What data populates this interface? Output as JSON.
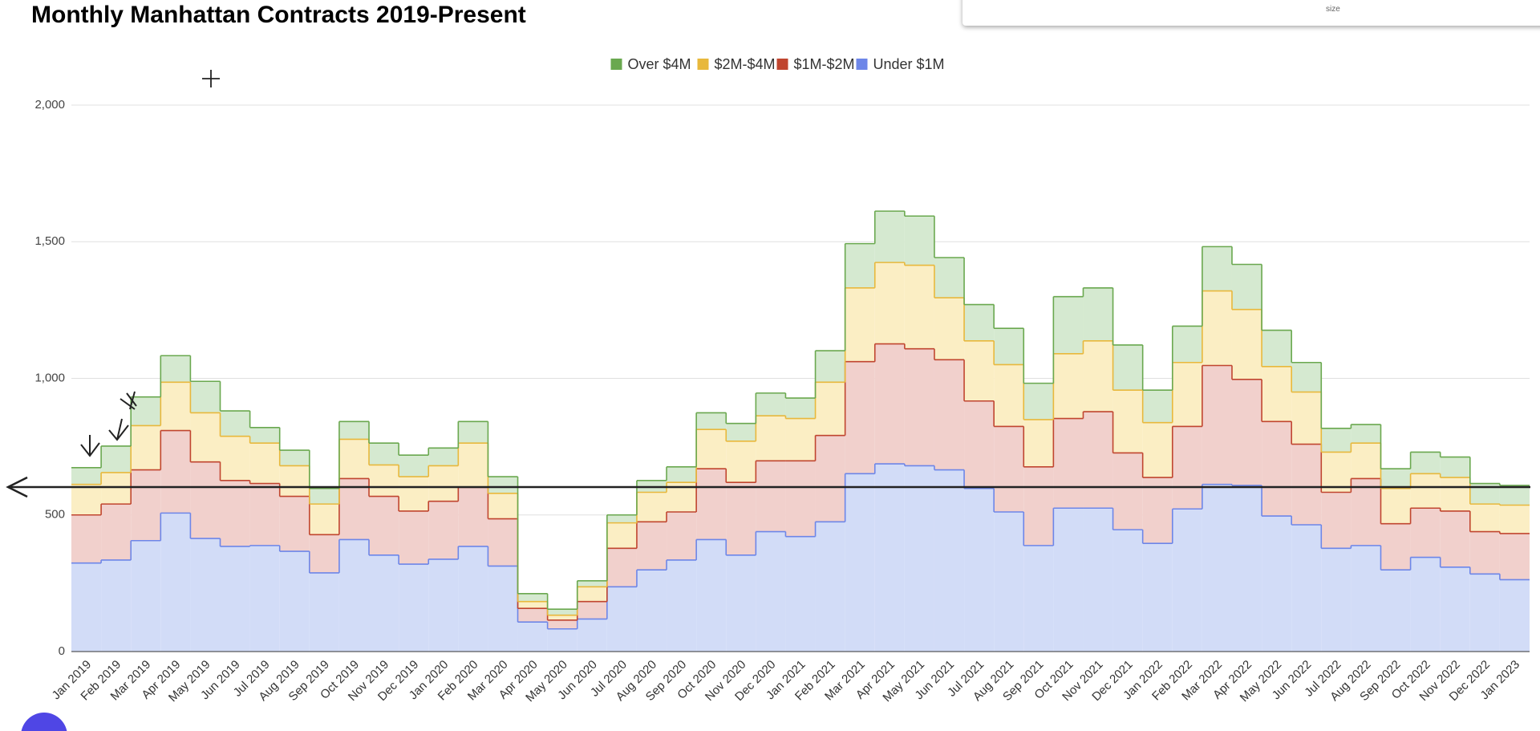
{
  "chart_data": {
    "type": "stepped-area-stacked",
    "title": "Monthly Manhattan Contracts 2019-Present",
    "categories": [
      "Jan 2019",
      "Feb 2019",
      "Mar 2019",
      "Apr 2019",
      "May 2019",
      "Jun 2019",
      "Jul 2019",
      "Aug 2019",
      "Sep 2019",
      "Oct 2019",
      "Nov 2019",
      "Dec 2019",
      "Jan 2020",
      "Feb 2020",
      "Mar 2020",
      "Apr 2020",
      "May 2020",
      "Jun 2020",
      "Jul 2020",
      "Aug 2020",
      "Sep 2020",
      "Oct 2020",
      "Nov 2020",
      "Dec 2020",
      "Jan 2021",
      "Feb 2021",
      "Mar 2021",
      "Apr 2021",
      "May 2021",
      "Jun 2021",
      "Jul 2021",
      "Aug 2021",
      "Sep 2021",
      "Oct 2021",
      "Nov 2021",
      "Dec 2021",
      "Jan 2022",
      "Feb 2022",
      "Mar 2022",
      "Apr 2022",
      "May 2022",
      "Jun 2022",
      "Jul 2022",
      "Aug 2022",
      "Sep 2022",
      "Oct 2022",
      "Nov 2022",
      "Dec 2022",
      "Jan 2023"
    ],
    "series": [
      {
        "name": "Over $4M",
        "color": "#6aa84f",
        "fill": "#d5e9d0",
        "values": [
          61,
          97,
          105,
          97,
          115,
          93,
          57,
          57,
          57,
          65,
          80,
          79,
          65,
          79,
          61,
          29,
          22,
          22,
          29,
          43,
          57,
          61,
          65,
          83,
          75,
          115,
          162,
          188,
          180,
          147,
          133,
          133,
          133,
          209,
          194,
          165,
          119,
          133,
          162,
          165,
          133,
          108,
          87,
          68,
          72,
          79,
          75,
          75,
          72
        ]
      },
      {
        "name": "$2M-$4M",
        "color": "#e8b83c",
        "fill": "#fbeec4",
        "values": [
          112,
          115,
          162,
          177,
          180,
          162,
          148,
          112,
          112,
          144,
          115,
          126,
          130,
          162,
          93,
          25,
          18,
          54,
          93,
          108,
          108,
          144,
          151,
          165,
          155,
          195,
          270,
          298,
          306,
          227,
          220,
          226,
          173,
          237,
          259,
          230,
          201,
          234,
          273,
          256,
          201,
          191,
          147,
          130,
          129,
          126,
          123,
          101,
          104
        ]
      },
      {
        "name": "$1M-$2M",
        "color": "#c0452f",
        "fill": "#f1d0cc",
        "values": [
          176,
          205,
          259,
          302,
          280,
          241,
          227,
          201,
          140,
          223,
          215,
          194,
          212,
          216,
          173,
          50,
          32,
          64,
          141,
          176,
          176,
          259,
          266,
          259,
          277,
          316,
          410,
          439,
          428,
          403,
          320,
          313,
          288,
          328,
          353,
          281,
          241,
          302,
          435,
          388,
          346,
          295,
          205,
          245,
          169,
          180,
          205,
          155,
          169
        ]
      },
      {
        "name": "Under $1M",
        "color": "#6d86e8",
        "fill": "#d2dcf7",
        "values": [
          324,
          335,
          406,
          507,
          414,
          385,
          388,
          367,
          288,
          410,
          353,
          320,
          338,
          385,
          313,
          108,
          83,
          119,
          237,
          299,
          335,
          410,
          353,
          439,
          421,
          475,
          651,
          687,
          680,
          665,
          597,
          511,
          388,
          525,
          525,
          446,
          396,
          522,
          612,
          608,
          496,
          464,
          378,
          388,
          299,
          345,
          309,
          284,
          263
        ]
      }
    ],
    "ylim": [
      0,
      2000
    ],
    "yticks": [
      0,
      500,
      {
        "value": 1000,
        "label": "1,000"
      },
      {
        "value": 1500,
        "label": "1,500"
      },
      {
        "value": 2000,
        "label": "2,000"
      }
    ],
    "grid": true,
    "stacked": true,
    "legend": "top"
  },
  "toolbar": {
    "size_label": "size"
  }
}
